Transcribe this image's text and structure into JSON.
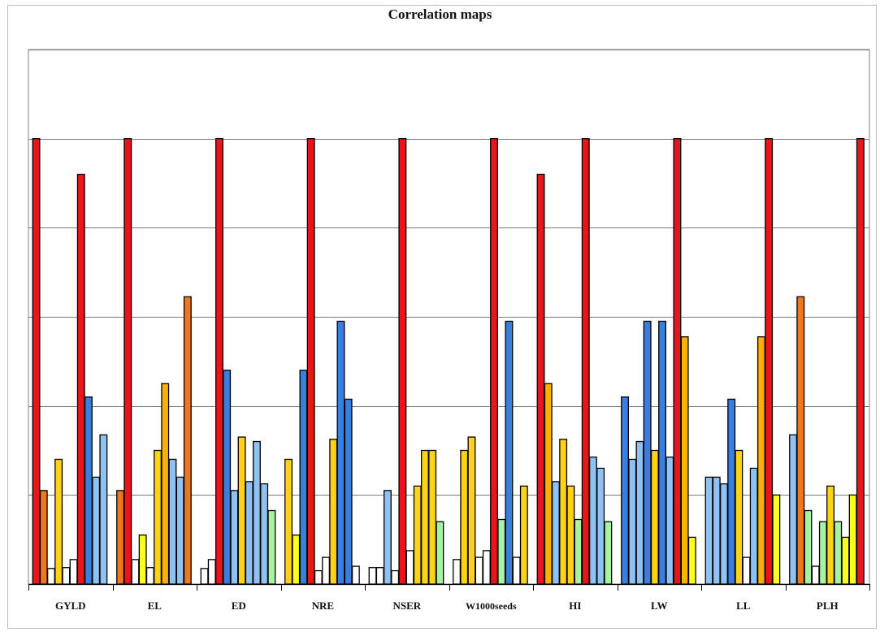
{
  "chart_data": {
    "type": "bar",
    "title": "Correlation maps",
    "xlabel": "",
    "ylabel": "",
    "ylim": [
      0,
      1.2
    ],
    "grid": true,
    "legend": "none",
    "categories": [
      "GYLD",
      "EL",
      "ED",
      "NRE",
      "NSER",
      "W1000seeds",
      "HI",
      "LW",
      "LL",
      "PLH"
    ],
    "bar_colors": {
      "red": "#e8161b",
      "orange": "#f07818",
      "amber": "#ffb000",
      "gold": "#ffd21a",
      "yellow": "#ffff20",
      "white": "#ffffff",
      "lightblue": "#8ec2f2",
      "blue": "#3a7ee0",
      "green": "#a6f4a0"
    },
    "groups": [
      {
        "category": "GYLD",
        "bars": [
          {
            "value": 1.0,
            "color": "red"
          },
          {
            "value": 0.21,
            "color": "orange"
          },
          {
            "value": 0.035,
            "color": "white"
          },
          {
            "value": 0.28,
            "color": "gold"
          },
          {
            "value": 0.037,
            "color": "white"
          },
          {
            "value": 0.055,
            "color": "white"
          },
          {
            "value": 0.92,
            "color": "red"
          },
          {
            "value": 0.42,
            "color": "blue"
          },
          {
            "value": 0.24,
            "color": "lightblue"
          },
          {
            "value": 0.335,
            "color": "lightblue"
          }
        ]
      },
      {
        "category": "EL",
        "bars": [
          {
            "value": 0.21,
            "color": "orange"
          },
          {
            "value": 1.0,
            "color": "red"
          },
          {
            "value": 0.055,
            "color": "white"
          },
          {
            "value": 0.11,
            "color": "yellow"
          },
          {
            "value": 0.037,
            "color": "white"
          },
          {
            "value": 0.3,
            "color": "gold"
          },
          {
            "value": 0.45,
            "color": "amber"
          },
          {
            "value": 0.28,
            "color": "lightblue"
          },
          {
            "value": 0.24,
            "color": "lightblue"
          },
          {
            "value": 0.645,
            "color": "orange"
          }
        ]
      },
      {
        "category": "ED",
        "bars": [
          {
            "value": 0.035,
            "color": "white"
          },
          {
            "value": 0.055,
            "color": "white"
          },
          {
            "value": 1.0,
            "color": "red"
          },
          {
            "value": 0.48,
            "color": "blue"
          },
          {
            "value": 0.21,
            "color": "lightblue"
          },
          {
            "value": 0.33,
            "color": "gold"
          },
          {
            "value": 0.23,
            "color": "lightblue"
          },
          {
            "value": 0.32,
            "color": "lightblue"
          },
          {
            "value": 0.225,
            "color": "lightblue"
          },
          {
            "value": 0.165,
            "color": "green"
          }
        ]
      },
      {
        "category": "NRE",
        "bars": [
          {
            "value": 0.28,
            "color": "gold"
          },
          {
            "value": 0.11,
            "color": "yellow"
          },
          {
            "value": 0.48,
            "color": "blue"
          },
          {
            "value": 1.0,
            "color": "red"
          },
          {
            "value": 0.03,
            "color": "white"
          },
          {
            "value": 0.06,
            "color": "white"
          },
          {
            "value": 0.325,
            "color": "gold"
          },
          {
            "value": 0.59,
            "color": "blue"
          },
          {
            "value": 0.415,
            "color": "blue"
          },
          {
            "value": 0.04,
            "color": "white"
          }
        ]
      },
      {
        "category": "NSER",
        "bars": [
          {
            "value": 0.037,
            "color": "white"
          },
          {
            "value": 0.037,
            "color": "white"
          },
          {
            "value": 0.21,
            "color": "lightblue"
          },
          {
            "value": 0.03,
            "color": "white"
          },
          {
            "value": 1.0,
            "color": "red"
          },
          {
            "value": 0.075,
            "color": "white"
          },
          {
            "value": 0.22,
            "color": "gold"
          },
          {
            "value": 0.3,
            "color": "gold"
          },
          {
            "value": 0.3,
            "color": "gold"
          },
          {
            "value": 0.14,
            "color": "green"
          }
        ]
      },
      {
        "category": "W1000seeds",
        "bars": [
          {
            "value": 0.055,
            "color": "white"
          },
          {
            "value": 0.3,
            "color": "gold"
          },
          {
            "value": 0.33,
            "color": "gold"
          },
          {
            "value": 0.06,
            "color": "white"
          },
          {
            "value": 0.075,
            "color": "white"
          },
          {
            "value": 1.0,
            "color": "red"
          },
          {
            "value": 0.145,
            "color": "green"
          },
          {
            "value": 0.59,
            "color": "blue"
          },
          {
            "value": 0.06,
            "color": "white"
          },
          {
            "value": 0.22,
            "color": "gold"
          }
        ]
      },
      {
        "category": "HI",
        "bars": [
          {
            "value": 0.92,
            "color": "red"
          },
          {
            "value": 0.45,
            "color": "amber"
          },
          {
            "value": 0.23,
            "color": "lightblue"
          },
          {
            "value": 0.325,
            "color": "gold"
          },
          {
            "value": 0.22,
            "color": "gold"
          },
          {
            "value": 0.145,
            "color": "green"
          },
          {
            "value": 1.0,
            "color": "red"
          },
          {
            "value": 0.285,
            "color": "lightblue"
          },
          {
            "value": 0.26,
            "color": "lightblue"
          },
          {
            "value": 0.14,
            "color": "green"
          }
        ]
      },
      {
        "category": "LW",
        "bars": [
          {
            "value": 0.42,
            "color": "blue"
          },
          {
            "value": 0.28,
            "color": "lightblue"
          },
          {
            "value": 0.32,
            "color": "lightblue"
          },
          {
            "value": 0.59,
            "color": "blue"
          },
          {
            "value": 0.3,
            "color": "gold"
          },
          {
            "value": 0.59,
            "color": "blue"
          },
          {
            "value": 0.285,
            "color": "lightblue"
          },
          {
            "value": 1.0,
            "color": "red"
          },
          {
            "value": 0.555,
            "color": "amber"
          },
          {
            "value": 0.105,
            "color": "yellow"
          }
        ]
      },
      {
        "category": "LL",
        "bars": [
          {
            "value": 0.24,
            "color": "lightblue"
          },
          {
            "value": 0.24,
            "color": "lightblue"
          },
          {
            "value": 0.225,
            "color": "lightblue"
          },
          {
            "value": 0.415,
            "color": "blue"
          },
          {
            "value": 0.3,
            "color": "gold"
          },
          {
            "value": 0.06,
            "color": "white"
          },
          {
            "value": 0.26,
            "color": "lightblue"
          },
          {
            "value": 0.555,
            "color": "amber"
          },
          {
            "value": 1.0,
            "color": "red"
          },
          {
            "value": 0.2,
            "color": "yellow"
          }
        ]
      },
      {
        "category": "PLH",
        "bars": [
          {
            "value": 0.335,
            "color": "lightblue"
          },
          {
            "value": 0.645,
            "color": "orange"
          },
          {
            "value": 0.165,
            "color": "green"
          },
          {
            "value": 0.04,
            "color": "white"
          },
          {
            "value": 0.14,
            "color": "green"
          },
          {
            "value": 0.22,
            "color": "gold"
          },
          {
            "value": 0.14,
            "color": "green"
          },
          {
            "value": 0.105,
            "color": "yellow"
          },
          {
            "value": 0.2,
            "color": "yellow"
          },
          {
            "value": 1.0,
            "color": "red"
          }
        ]
      }
    ]
  }
}
